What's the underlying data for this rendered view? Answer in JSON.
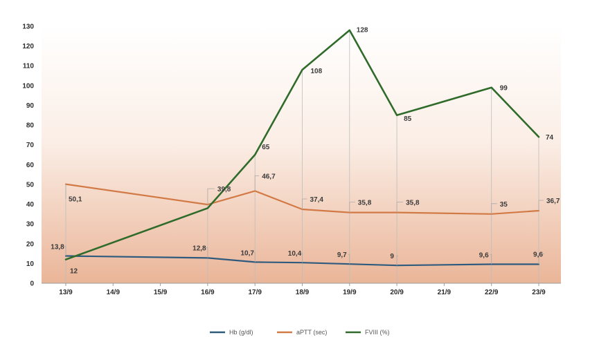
{
  "chart_data": {
    "type": "line",
    "categories": [
      "13/9",
      "14/9",
      "15/9",
      "16/9",
      "17/9",
      "18/9",
      "19/9",
      "20/9",
      "21/9",
      "22/9",
      "23/9"
    ],
    "ylim": [
      0,
      130
    ],
    "yticks": [
      0,
      10,
      20,
      30,
      40,
      50,
      60,
      70,
      80,
      90,
      100,
      110,
      120,
      130
    ],
    "grid": false,
    "legend_position": "bottom",
    "series": [
      {
        "name": "Hb (g/dl)",
        "color": "#2e5a7e",
        "points": [
          {
            "x": "13/9",
            "y": 13.8,
            "label": "13,8"
          },
          {
            "x": "16/9",
            "y": 12.8,
            "label": "12,8"
          },
          {
            "x": "17/9",
            "y": 10.7,
            "label": "10,7"
          },
          {
            "x": "18/9",
            "y": 10.4,
            "label": "10,4"
          },
          {
            "x": "19/9",
            "y": 9.7,
            "label": "9,7"
          },
          {
            "x": "20/9",
            "y": 9,
            "label": "9"
          },
          {
            "x": "22/9",
            "y": 9.6,
            "label": "9,6"
          },
          {
            "x": "23/9",
            "y": 9.6,
            "label": "9,6"
          }
        ]
      },
      {
        "name": "aPTT (sec)",
        "color": "#d27a45",
        "points": [
          {
            "x": "13/9",
            "y": 50.1,
            "label": "50,1"
          },
          {
            "x": "16/9",
            "y": 39.8,
            "label": "39,8"
          },
          {
            "x": "17/9",
            "y": 46.7,
            "label": "46,7"
          },
          {
            "x": "18/9",
            "y": 37.4,
            "label": "37,4"
          },
          {
            "x": "19/9",
            "y": 35.8,
            "label": "35,8"
          },
          {
            "x": "20/9",
            "y": 35.8,
            "label": "35,8"
          },
          {
            "x": "22/9",
            "y": 35,
            "label": "35"
          },
          {
            "x": "23/9",
            "y": 36.7,
            "label": "36,7"
          }
        ]
      },
      {
        "name": "FVIII (%)",
        "color": "#2f6b2a",
        "points": [
          {
            "x": "13/9",
            "y": 12,
            "label": "12"
          },
          {
            "x": "16/9",
            "y": 38,
            "label": ""
          },
          {
            "x": "17/9",
            "y": 65,
            "label": "65"
          },
          {
            "x": "18/9",
            "y": 108,
            "label": "108"
          },
          {
            "x": "19/9",
            "y": 128,
            "label": "128"
          },
          {
            "x": "20/9",
            "y": 85,
            "label": "85"
          },
          {
            "x": "22/9",
            "y": 99,
            "label": "99"
          },
          {
            "x": "23/9",
            "y": 74,
            "label": "74"
          }
        ]
      }
    ]
  }
}
